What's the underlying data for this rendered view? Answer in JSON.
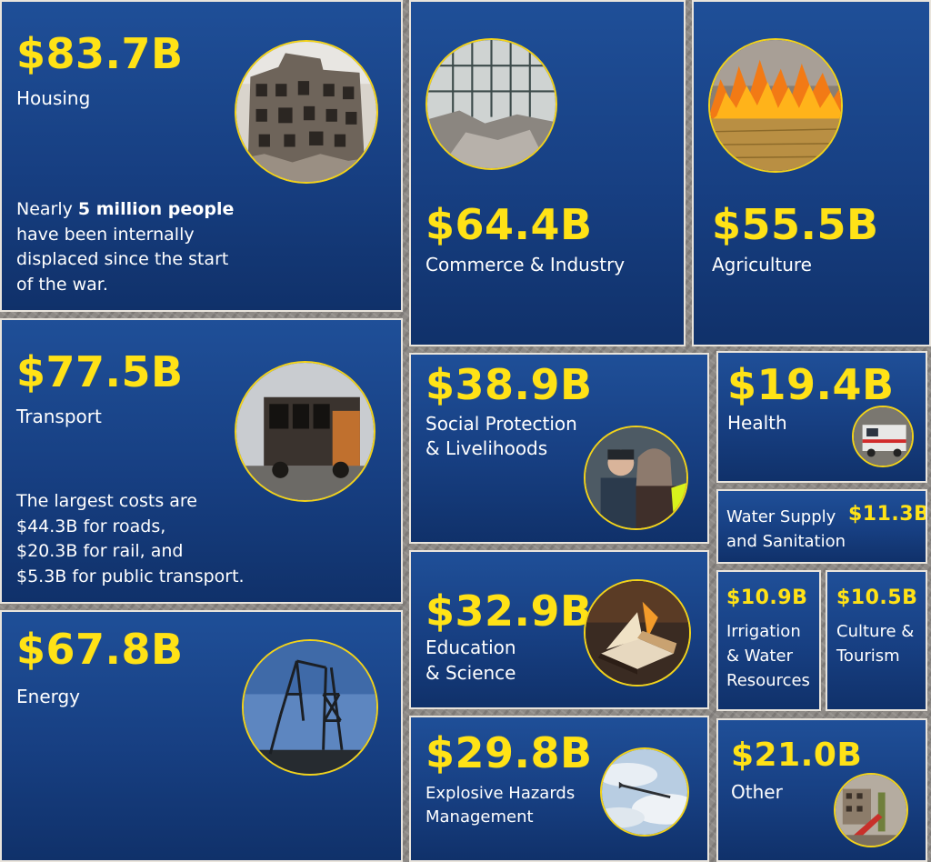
{
  "tiles": {
    "housing": {
      "amount": "$83.7B",
      "label": "Housing",
      "note_pre": "Nearly ",
      "note_bold": "5 million people",
      "note_line1_rest": "",
      "note_line2": "have been internally",
      "note_line3": "displaced since the start",
      "note_line4": "of the war.",
      "icon": "destroyed-building-photo"
    },
    "commerce": {
      "amount": "$64.4B",
      "label": "Commerce & Industry",
      "icon": "ruined-factory-photo"
    },
    "agriculture": {
      "amount": "$55.5B",
      "label": "Agriculture",
      "icon": "burning-field-photo"
    },
    "transport": {
      "amount": "$77.5B",
      "label": "Transport",
      "note_line1": "The largest costs are",
      "note_line2": "$44.3B for roads,",
      "note_line3": "$20.3B for rail, and",
      "note_line4": "$5.3B for public transport.",
      "icon": "burned-bus-photo"
    },
    "social": {
      "amount": "$38.9B",
      "label_line1": "Social Protection",
      "label_line2": "& Livelihoods",
      "icon": "people-photo"
    },
    "health": {
      "amount": "$19.4B",
      "label": "Health",
      "icon": "ambulance-photo"
    },
    "water": {
      "amount": "$11.3B",
      "label_line1": "Water Supply",
      "label_line2": "and Sanitation"
    },
    "energy": {
      "amount": "$67.8B",
      "label": "Energy",
      "icon": "collapsed-pylon-photo"
    },
    "education": {
      "amount": "$32.9B",
      "label_line1": "Education",
      "label_line2": "& Science",
      "icon": "burned-book-photo"
    },
    "irrigation": {
      "amount": "$10.9B",
      "label_line1": "Irrigation",
      "label_line2": "& Water",
      "label_line3": "Resources"
    },
    "culture": {
      "amount": "$10.5B",
      "label_line1": "Culture &",
      "label_line2": "Tourism"
    },
    "explosive": {
      "amount": "$29.8B",
      "label_line1": "Explosive Hazards",
      "label_line2": "Management",
      "icon": "missile-photo"
    },
    "other": {
      "amount": "$21.0B",
      "label": "Other",
      "icon": "playground-photo"
    }
  },
  "colors": {
    "accent": "#ffe216",
    "tile_top": "#1f4f98",
    "tile_bottom": "#10316a",
    "ring": "#f2d21a"
  }
}
